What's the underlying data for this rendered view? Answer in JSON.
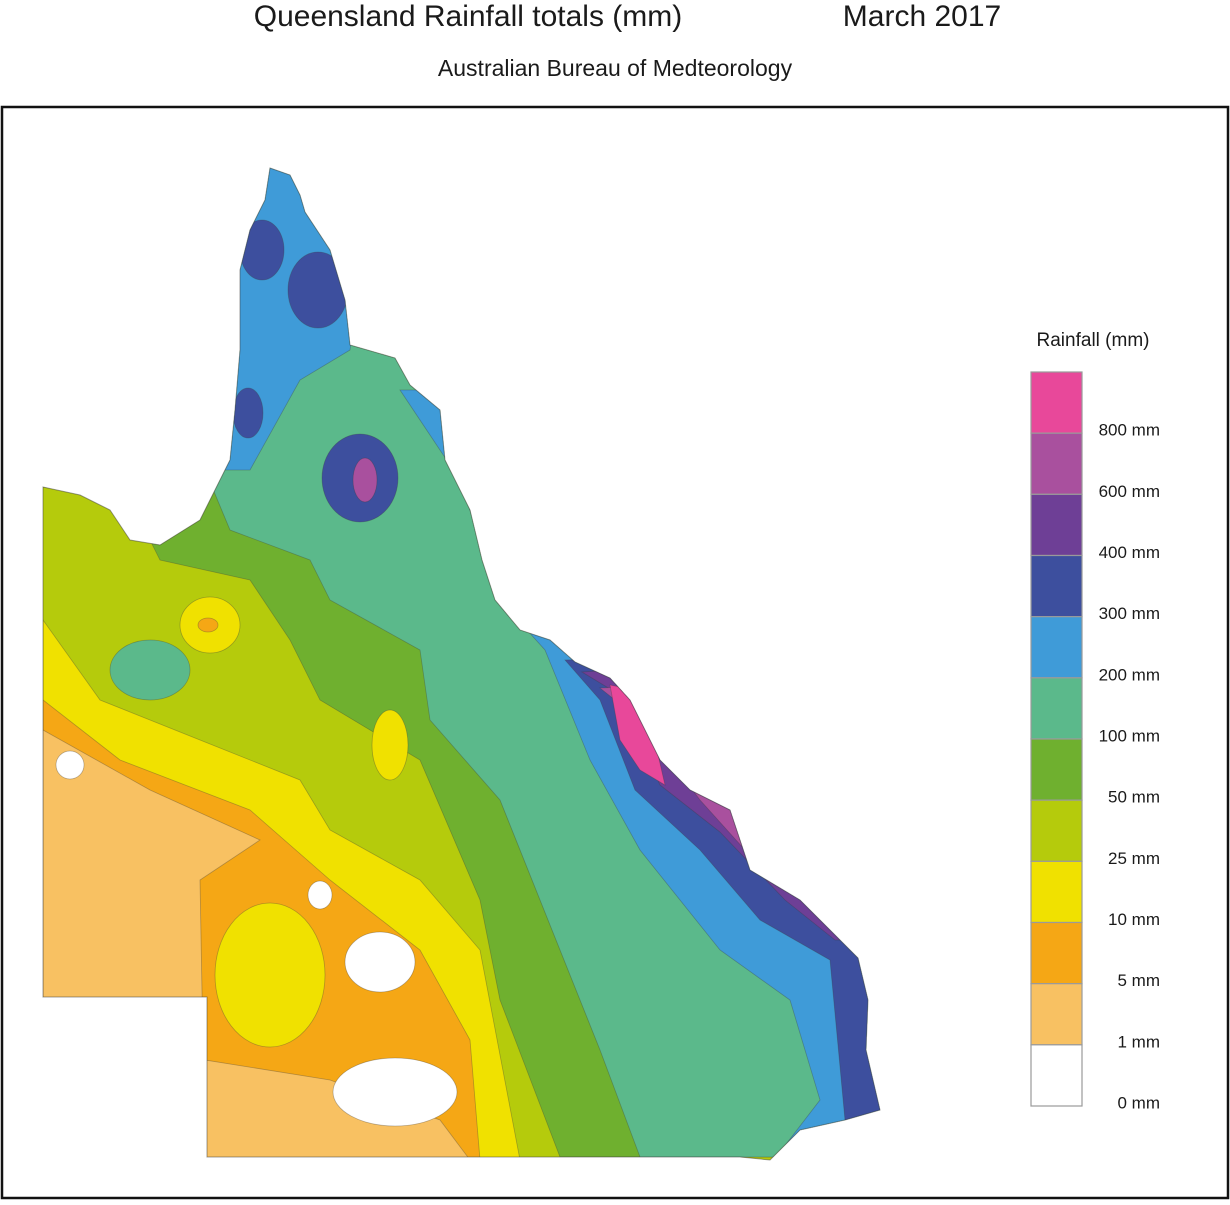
{
  "header": {
    "title": "Queensland Rainfall totals (mm)",
    "date": "March 2017",
    "subtitle": "Australian Bureau of Medteorology"
  },
  "legend": {
    "title": "Rainfall (mm)",
    "bands": [
      {
        "color": "#e8489a"
      },
      {
        "color": "#a9509e"
      },
      {
        "color": "#6e3f96"
      },
      {
        "color": "#3d4f9e"
      },
      {
        "color": "#3f9bd8"
      },
      {
        "color": "#5bb98b"
      },
      {
        "color": "#6fb02f"
      },
      {
        "color": "#b5cb0c"
      },
      {
        "color": "#f0e100"
      },
      {
        "color": "#f5a715"
      },
      {
        "color": "#f8c162"
      },
      {
        "color": "#ffffff"
      }
    ],
    "labels": [
      "800 mm",
      "600 mm",
      "400 mm",
      "300 mm",
      "200 mm",
      "100 mm",
      "50 mm",
      "25 mm",
      "10 mm",
      "5 mm",
      "1 mm",
      "0 mm"
    ]
  }
}
